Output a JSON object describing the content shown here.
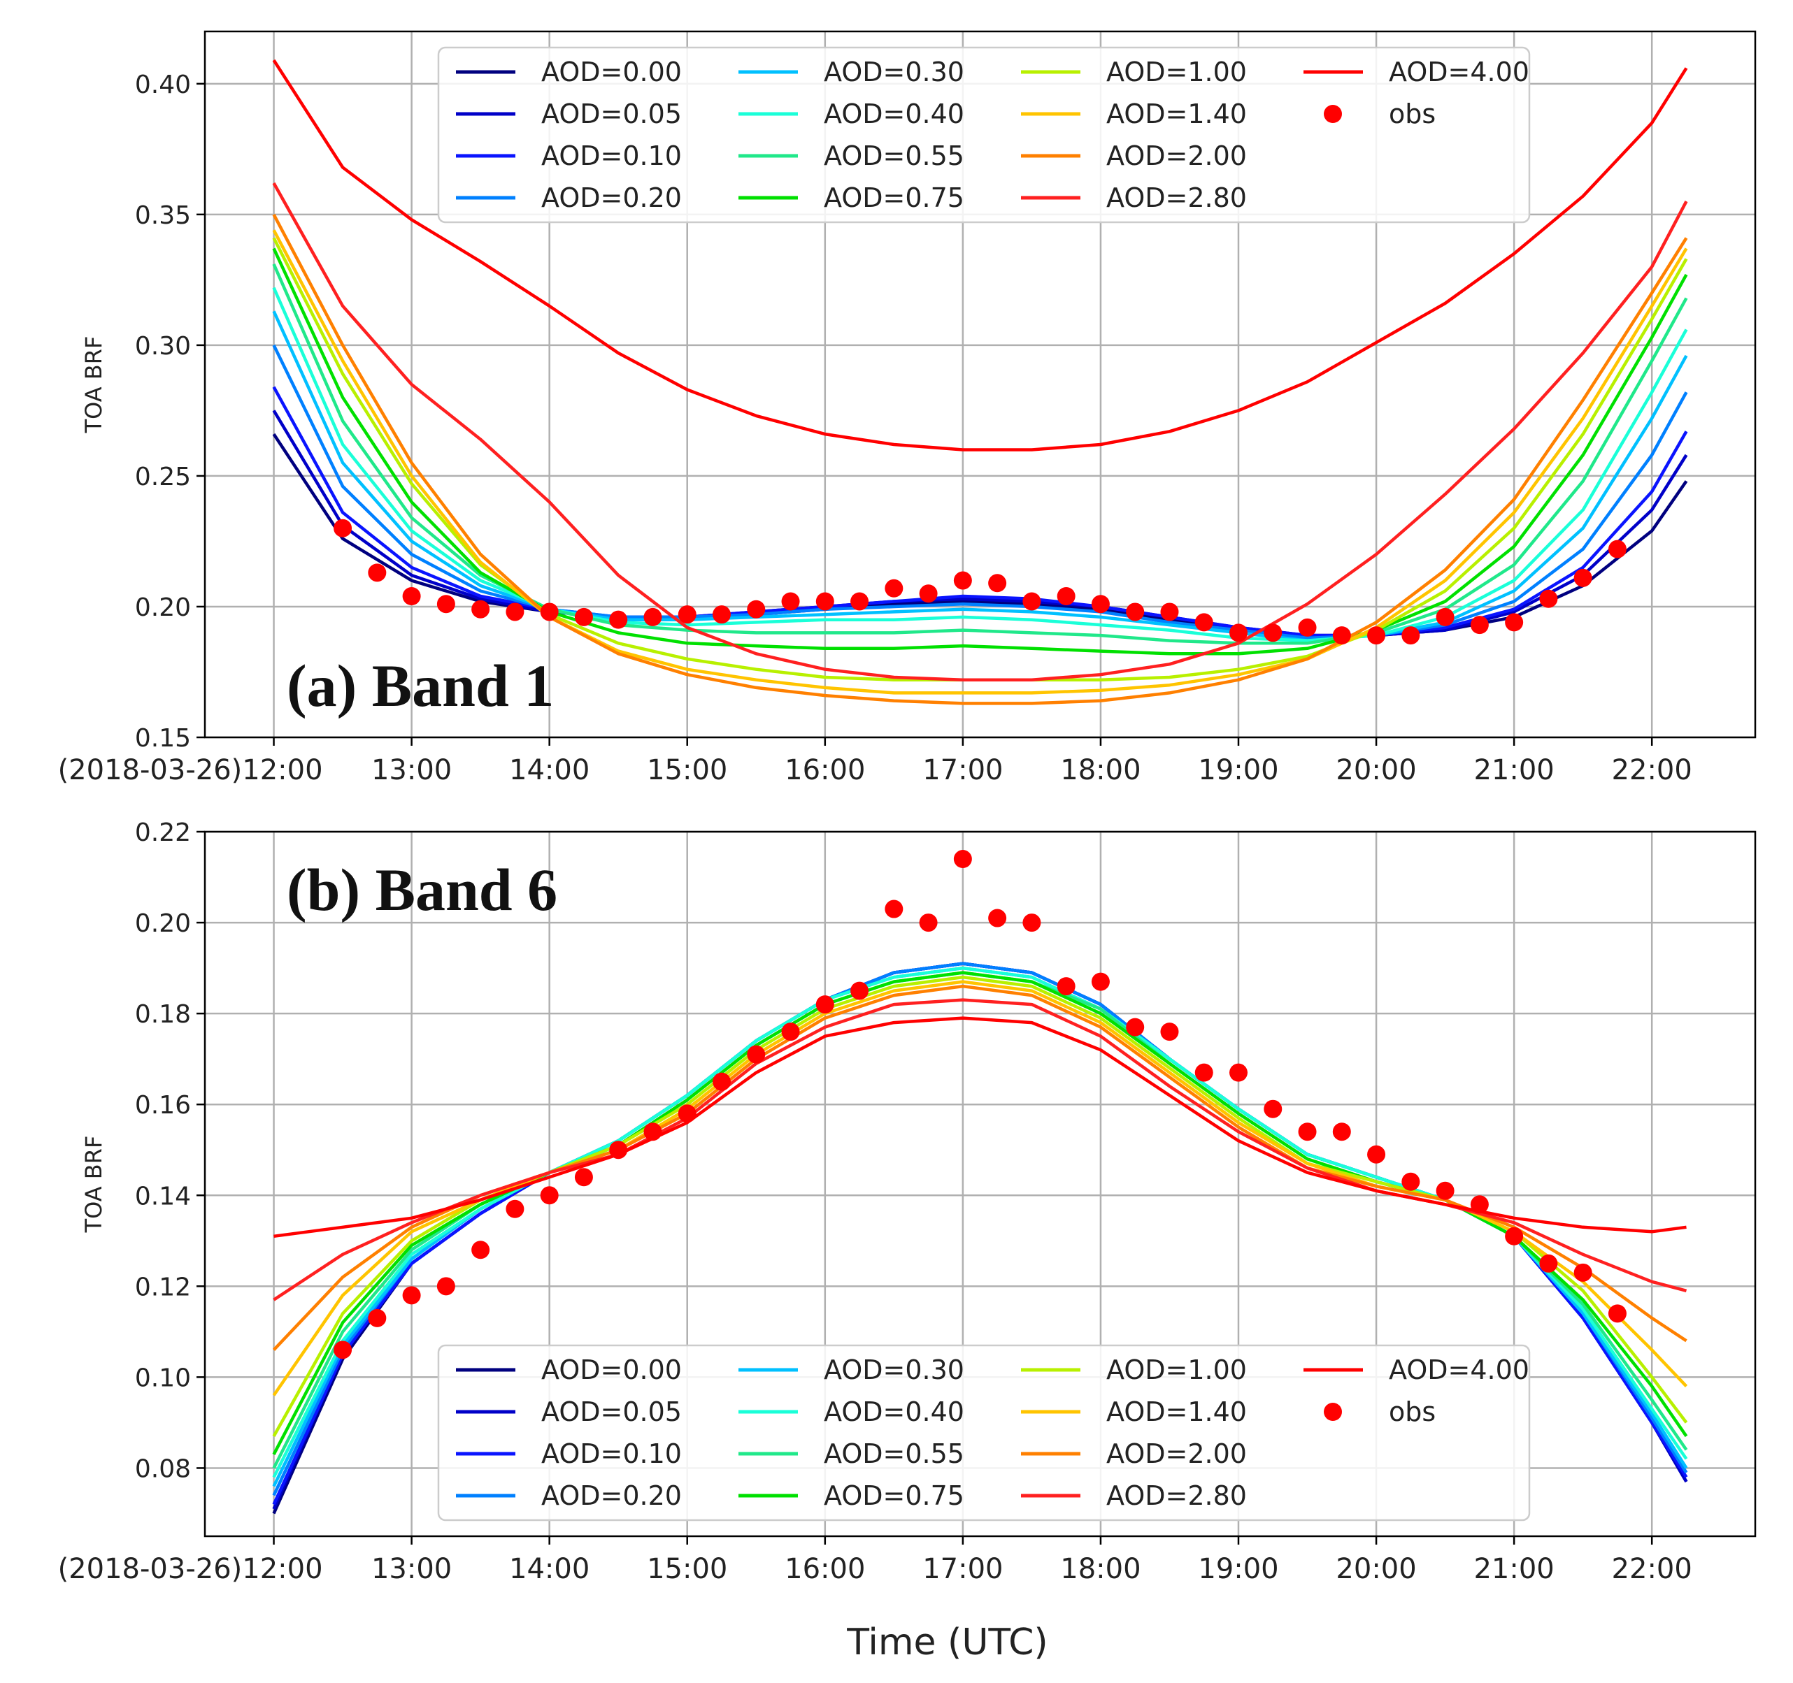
{
  "figure": {
    "xlabel_shared": "Time (UTC)"
  },
  "chart_data": [
    {
      "type": "line",
      "panel_label": "(a) Band 1",
      "ylabel": "TOA BRF",
      "x_ticks": [
        "(2018-03-26)12:00",
        "13:00",
        "14:00",
        "15:00",
        "16:00",
        "17:00",
        "18:00",
        "19:00",
        "20:00",
        "21:00",
        "22:00"
      ],
      "x_tick_values": [
        12,
        13,
        14,
        15,
        16,
        17,
        18,
        19,
        20,
        21,
        22
      ],
      "xlim": [
        11.5,
        22.75
      ],
      "ylim": [
        0.15,
        0.42
      ],
      "y_ticks": [
        "0.15",
        "0.20",
        "0.25",
        "0.30",
        "0.35",
        "0.40"
      ],
      "y_tick_values": [
        0.15,
        0.2,
        0.25,
        0.3,
        0.35,
        0.4
      ],
      "grid": true,
      "legend_position": "upper-center",
      "x": [
        12.0,
        12.5,
        13.0,
        13.5,
        14.0,
        14.5,
        15.0,
        15.5,
        16.0,
        16.5,
        17.0,
        17.5,
        18.0,
        18.5,
        19.0,
        19.5,
        20.0,
        20.5,
        21.0,
        21.5,
        22.0,
        22.25
      ],
      "series": [
        {
          "name": "AOD=0.00",
          "color": "#00007f",
          "values": [
            0.266,
            0.226,
            0.21,
            0.202,
            0.198,
            0.196,
            0.196,
            0.197,
            0.199,
            0.201,
            0.202,
            0.201,
            0.199,
            0.195,
            0.191,
            0.189,
            0.189,
            0.191,
            0.196,
            0.208,
            0.229,
            0.248
          ]
        },
        {
          "name": "AOD=0.05",
          "color": "#0000c8",
          "values": [
            0.275,
            0.231,
            0.212,
            0.203,
            0.198,
            0.196,
            0.196,
            0.198,
            0.2,
            0.202,
            0.203,
            0.202,
            0.2,
            0.196,
            0.192,
            0.189,
            0.189,
            0.191,
            0.198,
            0.212,
            0.237,
            0.258
          ]
        },
        {
          "name": "AOD=0.10",
          "color": "#0a14ff",
          "values": [
            0.284,
            0.236,
            0.215,
            0.204,
            0.199,
            0.196,
            0.196,
            0.198,
            0.2,
            0.202,
            0.204,
            0.203,
            0.2,
            0.196,
            0.192,
            0.189,
            0.189,
            0.192,
            0.199,
            0.215,
            0.244,
            0.267
          ]
        },
        {
          "name": "AOD=0.20",
          "color": "#0080ff",
          "values": [
            0.3,
            0.246,
            0.22,
            0.206,
            0.199,
            0.196,
            0.196,
            0.197,
            0.199,
            0.2,
            0.201,
            0.2,
            0.198,
            0.194,
            0.191,
            0.188,
            0.189,
            0.193,
            0.202,
            0.222,
            0.258,
            0.282
          ]
        },
        {
          "name": "AOD=0.30",
          "color": "#00c0ff",
          "values": [
            0.313,
            0.255,
            0.225,
            0.208,
            0.199,
            0.195,
            0.195,
            0.196,
            0.197,
            0.198,
            0.199,
            0.198,
            0.196,
            0.193,
            0.19,
            0.187,
            0.189,
            0.194,
            0.206,
            0.23,
            0.272,
            0.296
          ]
        },
        {
          "name": "AOD=0.40",
          "color": "#1affd8",
          "values": [
            0.322,
            0.262,
            0.229,
            0.21,
            0.199,
            0.194,
            0.193,
            0.194,
            0.195,
            0.195,
            0.196,
            0.195,
            0.193,
            0.191,
            0.188,
            0.187,
            0.189,
            0.196,
            0.21,
            0.237,
            0.282,
            0.306
          ]
        },
        {
          "name": "AOD=0.55",
          "color": "#20e88a",
          "values": [
            0.331,
            0.271,
            0.234,
            0.212,
            0.199,
            0.193,
            0.191,
            0.19,
            0.19,
            0.19,
            0.191,
            0.19,
            0.189,
            0.187,
            0.186,
            0.186,
            0.19,
            0.199,
            0.216,
            0.248,
            0.294,
            0.318
          ]
        },
        {
          "name": "AOD=0.75",
          "color": "#00e000",
          "values": [
            0.337,
            0.28,
            0.24,
            0.213,
            0.198,
            0.19,
            0.186,
            0.185,
            0.184,
            0.184,
            0.185,
            0.184,
            0.183,
            0.182,
            0.182,
            0.184,
            0.191,
            0.202,
            0.223,
            0.258,
            0.303,
            0.327
          ]
        },
        {
          "name": "AOD=1.00",
          "color": "#b8f000",
          "values": [
            0.341,
            0.289,
            0.247,
            0.216,
            0.197,
            0.186,
            0.18,
            0.176,
            0.173,
            0.172,
            0.172,
            0.172,
            0.172,
            0.173,
            0.176,
            0.181,
            0.191,
            0.206,
            0.23,
            0.266,
            0.31,
            0.333
          ]
        },
        {
          "name": "AOD=1.40",
          "color": "#ffc400",
          "values": [
            0.344,
            0.294,
            0.25,
            0.217,
            0.196,
            0.183,
            0.176,
            0.172,
            0.169,
            0.167,
            0.167,
            0.167,
            0.168,
            0.17,
            0.174,
            0.18,
            0.192,
            0.21,
            0.236,
            0.272,
            0.315,
            0.337
          ]
        },
        {
          "name": "AOD=2.00",
          "color": "#ff8000",
          "values": [
            0.35,
            0.3,
            0.255,
            0.22,
            0.196,
            0.182,
            0.174,
            0.169,
            0.166,
            0.164,
            0.163,
            0.163,
            0.164,
            0.167,
            0.172,
            0.18,
            0.194,
            0.214,
            0.241,
            0.279,
            0.32,
            0.341
          ]
        },
        {
          "name": "AOD=2.80",
          "color": "#ff2020",
          "values": [
            0.362,
            0.315,
            0.285,
            0.264,
            0.24,
            0.212,
            0.192,
            0.182,
            0.176,
            0.173,
            0.172,
            0.172,
            0.174,
            0.178,
            0.186,
            0.201,
            0.22,
            0.243,
            0.268,
            0.297,
            0.33,
            0.355
          ]
        },
        {
          "name": "AOD=4.00",
          "color": "#ff0000",
          "values": [
            0.409,
            0.368,
            0.348,
            0.332,
            0.315,
            0.297,
            0.283,
            0.273,
            0.266,
            0.262,
            0.26,
            0.26,
            0.262,
            0.267,
            0.275,
            0.286,
            0.301,
            0.316,
            0.335,
            0.357,
            0.385,
            0.406
          ]
        }
      ],
      "obs": {
        "name": "obs",
        "color": "#ff0000",
        "x": [
          12.5,
          12.75,
          13.0,
          13.25,
          13.5,
          13.75,
          14.0,
          14.25,
          14.5,
          14.75,
          15.0,
          15.25,
          15.5,
          15.75,
          16.0,
          16.25,
          16.5,
          16.75,
          17.0,
          17.25,
          17.5,
          17.75,
          18.0,
          18.25,
          18.5,
          18.75,
          19.0,
          19.25,
          19.5,
          19.75,
          20.0,
          20.25,
          20.5,
          20.75,
          21.0,
          21.25,
          21.5,
          21.75
        ],
        "values": [
          0.23,
          0.213,
          0.204,
          0.201,
          0.199,
          0.198,
          0.198,
          0.196,
          0.195,
          0.196,
          0.197,
          0.197,
          0.199,
          0.202,
          0.202,
          0.202,
          0.207,
          0.205,
          0.21,
          0.209,
          0.202,
          0.204,
          0.201,
          0.198,
          0.198,
          0.194,
          0.19,
          0.19,
          0.192,
          0.189,
          0.189,
          0.189,
          0.196,
          0.193,
          0.194,
          0.203,
          0.211,
          0.222
        ]
      }
    },
    {
      "type": "line",
      "panel_label": "(b) Band 6",
      "ylabel": "TOA BRF",
      "x_ticks": [
        "(2018-03-26)12:00",
        "13:00",
        "14:00",
        "15:00",
        "16:00",
        "17:00",
        "18:00",
        "19:00",
        "20:00",
        "21:00",
        "22:00"
      ],
      "x_tick_values": [
        12,
        13,
        14,
        15,
        16,
        17,
        18,
        19,
        20,
        21,
        22
      ],
      "xlim": [
        11.5,
        22.75
      ],
      "ylim": [
        0.065,
        0.22
      ],
      "y_ticks": [
        "0.08",
        "0.10",
        "0.12",
        "0.14",
        "0.16",
        "0.18",
        "0.20",
        "0.22"
      ],
      "y_tick_values": [
        0.08,
        0.1,
        0.12,
        0.14,
        0.16,
        0.18,
        0.2,
        0.22
      ],
      "grid": true,
      "legend_position": "lower-center",
      "x": [
        12.0,
        12.5,
        13.0,
        13.5,
        14.0,
        14.5,
        15.0,
        15.5,
        16.0,
        16.5,
        17.0,
        17.5,
        18.0,
        18.5,
        19.0,
        19.5,
        20.0,
        20.5,
        21.0,
        21.5,
        22.0,
        22.25
      ],
      "series": [
        {
          "name": "AOD=0.00",
          "color": "#00007f",
          "values": [
            0.07,
            0.104,
            0.125,
            0.136,
            0.145,
            0.152,
            0.162,
            0.174,
            0.183,
            0.189,
            0.191,
            0.189,
            0.182,
            0.17,
            0.159,
            0.149,
            0.144,
            0.139,
            0.131,
            0.113,
            0.09,
            0.077
          ]
        },
        {
          "name": "AOD=0.05",
          "color": "#0000c8",
          "values": [
            0.071,
            0.105,
            0.125,
            0.136,
            0.145,
            0.152,
            0.162,
            0.174,
            0.183,
            0.189,
            0.191,
            0.189,
            0.182,
            0.17,
            0.159,
            0.149,
            0.144,
            0.139,
            0.131,
            0.113,
            0.09,
            0.077
          ]
        },
        {
          "name": "AOD=0.10",
          "color": "#0a14ff",
          "values": [
            0.072,
            0.105,
            0.125,
            0.136,
            0.145,
            0.152,
            0.162,
            0.174,
            0.183,
            0.189,
            0.191,
            0.189,
            0.182,
            0.17,
            0.159,
            0.149,
            0.144,
            0.139,
            0.131,
            0.113,
            0.09,
            0.078
          ]
        },
        {
          "name": "AOD=0.20",
          "color": "#0080ff",
          "values": [
            0.074,
            0.106,
            0.126,
            0.137,
            0.145,
            0.152,
            0.162,
            0.174,
            0.183,
            0.189,
            0.191,
            0.189,
            0.182,
            0.17,
            0.159,
            0.149,
            0.144,
            0.139,
            0.131,
            0.114,
            0.091,
            0.079
          ]
        },
        {
          "name": "AOD=0.30",
          "color": "#00c0ff",
          "values": [
            0.076,
            0.107,
            0.126,
            0.137,
            0.145,
            0.152,
            0.162,
            0.174,
            0.183,
            0.188,
            0.19,
            0.188,
            0.181,
            0.17,
            0.159,
            0.149,
            0.144,
            0.139,
            0.131,
            0.114,
            0.092,
            0.08
          ]
        },
        {
          "name": "AOD=0.40",
          "color": "#1affd8",
          "values": [
            0.078,
            0.108,
            0.127,
            0.137,
            0.145,
            0.152,
            0.162,
            0.174,
            0.183,
            0.188,
            0.19,
            0.188,
            0.181,
            0.17,
            0.159,
            0.149,
            0.144,
            0.139,
            0.131,
            0.115,
            0.093,
            0.082
          ]
        },
        {
          "name": "AOD=0.55",
          "color": "#20e88a",
          "values": [
            0.08,
            0.11,
            0.128,
            0.138,
            0.145,
            0.151,
            0.161,
            0.173,
            0.182,
            0.187,
            0.189,
            0.187,
            0.181,
            0.169,
            0.158,
            0.148,
            0.143,
            0.139,
            0.131,
            0.116,
            0.095,
            0.084
          ]
        },
        {
          "name": "AOD=0.75",
          "color": "#00e000",
          "values": [
            0.083,
            0.112,
            0.129,
            0.138,
            0.145,
            0.151,
            0.161,
            0.173,
            0.182,
            0.187,
            0.189,
            0.187,
            0.18,
            0.169,
            0.158,
            0.148,
            0.143,
            0.139,
            0.131,
            0.117,
            0.098,
            0.087
          ]
        },
        {
          "name": "AOD=1.00",
          "color": "#b8f000",
          "values": [
            0.087,
            0.114,
            0.13,
            0.139,
            0.145,
            0.151,
            0.16,
            0.172,
            0.181,
            0.186,
            0.188,
            0.186,
            0.179,
            0.168,
            0.157,
            0.147,
            0.143,
            0.139,
            0.132,
            0.119,
            0.1,
            0.09
          ]
        },
        {
          "name": "AOD=1.40",
          "color": "#ffc400",
          "values": [
            0.096,
            0.118,
            0.132,
            0.139,
            0.145,
            0.15,
            0.159,
            0.171,
            0.18,
            0.185,
            0.187,
            0.185,
            0.178,
            0.167,
            0.156,
            0.147,
            0.142,
            0.139,
            0.132,
            0.121,
            0.106,
            0.098
          ]
        },
        {
          "name": "AOD=2.00",
          "color": "#ff8000",
          "values": [
            0.106,
            0.122,
            0.133,
            0.14,
            0.145,
            0.15,
            0.158,
            0.17,
            0.179,
            0.184,
            0.186,
            0.184,
            0.177,
            0.166,
            0.155,
            0.146,
            0.142,
            0.139,
            0.133,
            0.124,
            0.113,
            0.108
          ]
        },
        {
          "name": "AOD=2.80",
          "color": "#ff2020",
          "values": [
            0.117,
            0.127,
            0.134,
            0.14,
            0.145,
            0.149,
            0.157,
            0.169,
            0.177,
            0.182,
            0.183,
            0.182,
            0.175,
            0.164,
            0.154,
            0.146,
            0.141,
            0.138,
            0.134,
            0.127,
            0.121,
            0.119
          ]
        },
        {
          "name": "AOD=4.00",
          "color": "#ff0000",
          "values": [
            0.131,
            0.133,
            0.135,
            0.139,
            0.144,
            0.149,
            0.156,
            0.167,
            0.175,
            0.178,
            0.179,
            0.178,
            0.172,
            0.162,
            0.152,
            0.145,
            0.141,
            0.138,
            0.135,
            0.133,
            0.132,
            0.133
          ]
        }
      ],
      "obs": {
        "name": "obs",
        "color": "#ff0000",
        "x": [
          12.5,
          12.75,
          13.0,
          13.25,
          13.5,
          13.75,
          14.0,
          14.25,
          14.5,
          14.75,
          15.0,
          15.25,
          15.5,
          15.75,
          16.0,
          16.25,
          16.5,
          16.75,
          17.0,
          17.25,
          17.5,
          17.75,
          18.0,
          18.25,
          18.5,
          18.75,
          19.0,
          19.25,
          19.5,
          19.75,
          20.0,
          20.25,
          20.5,
          20.75,
          21.0,
          21.25,
          21.5,
          21.75
        ],
        "values": [
          0.106,
          0.113,
          0.118,
          0.12,
          0.128,
          0.137,
          0.14,
          0.144,
          0.15,
          0.154,
          0.158,
          0.165,
          0.171,
          0.176,
          0.182,
          0.185,
          0.203,
          0.2,
          0.214,
          0.201,
          0.2,
          0.186,
          0.187,
          0.177,
          0.176,
          0.167,
          0.167,
          0.159,
          0.154,
          0.154,
          0.149,
          0.143,
          0.141,
          0.138,
          0.131,
          0.125,
          0.123,
          0.114
        ]
      }
    }
  ]
}
